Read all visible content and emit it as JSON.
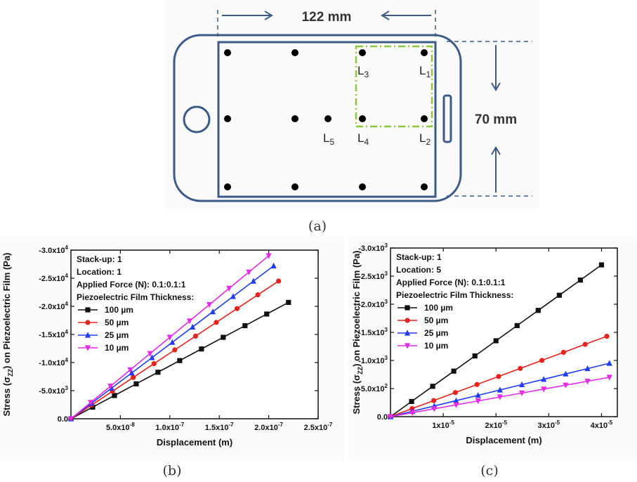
{
  "figure": {
    "captions": [
      "(a)",
      "(b)",
      "(c)"
    ]
  },
  "diagram": {
    "width_label": "122 mm",
    "height_label": "70 mm",
    "points": [
      {
        "main": "L",
        "sub": "3"
      },
      {
        "main": "L",
        "sub": "1"
      },
      {
        "main": "L",
        "sub": "5"
      },
      {
        "main": "L",
        "sub": "4"
      },
      {
        "main": "L",
        "sub": "2"
      }
    ],
    "colors": {
      "outline": "#3b5a86",
      "dashed_box": "#8dc63f",
      "dot": "#000000"
    }
  },
  "chart_data": [
    {
      "type": "line",
      "panel": "(b)",
      "xlabel": "Displacement (m)",
      "ylabel": "Stress (σZZ) on Piezoelectric Film (Pa)",
      "xlim": [
        0,
        2.5e-07
      ],
      "ylim": [
        0,
        -30000
      ],
      "x_ticks": [
        "5.0x10-8",
        "1.0x10-7",
        "1.5x10-7",
        "2.0x10-7",
        "2.5x10-7"
      ],
      "y_ticks": [
        "0.0",
        "-5.0x103",
        "-1.0x104",
        "-1.5x104",
        "-2.0x104",
        "-2.5x104",
        "-3.0x104"
      ],
      "annotations": [
        "Stack-up: 1",
        "Location: 1",
        "Applied Force (N): 0.1:0.1:1",
        "Piezoelectric Film Thickness:"
      ],
      "series": [
        {
          "name": "100 µm",
          "color": "#111111",
          "marker": "square",
          "x": [
            0,
            2.2e-08,
            4.4e-08,
            6.6e-08,
            8.8e-08,
            1.1e-07,
            1.32e-07,
            1.54e-07,
            1.76e-07,
            1.98e-07,
            2.2e-07
          ],
          "y": [
            0,
            -2070,
            -4140,
            -6210,
            -8280,
            -10350,
            -12420,
            -14490,
            -16560,
            -18630,
            -20700
          ]
        },
        {
          "name": "50 µm",
          "color": "#e8221c",
          "marker": "circle",
          "x": [
            0,
            2.1e-08,
            4.2e-08,
            6.3e-08,
            8.4e-08,
            1.05e-07,
            1.26e-07,
            1.47e-07,
            1.68e-07,
            1.89e-07,
            2.1e-07
          ],
          "y": [
            0,
            -2450,
            -4900,
            -7350,
            -9800,
            -12250,
            -14700,
            -17150,
            -19600,
            -22050,
            -24500
          ]
        },
        {
          "name": "25 µm",
          "color": "#1f3cf0",
          "marker": "triangle-up",
          "x": [
            0,
            2.05e-08,
            4.1e-08,
            6.15e-08,
            8.2e-08,
            1.025e-07,
            1.23e-07,
            1.435e-07,
            1.64e-07,
            1.845e-07,
            2.05e-07
          ],
          "y": [
            0,
            -2720,
            -5440,
            -8160,
            -10880,
            -13600,
            -16320,
            -19040,
            -21760,
            -24480,
            -27200
          ]
        },
        {
          "name": "10 µm",
          "color": "#e62ae6",
          "marker": "triangle-down",
          "x": [
            0,
            2e-08,
            4e-08,
            6e-08,
            8e-08,
            1e-07,
            1.2e-07,
            1.4e-07,
            1.6e-07,
            1.8e-07,
            2e-07
          ],
          "y": [
            0,
            -2900,
            -5800,
            -8700,
            -11600,
            -14500,
            -17400,
            -20300,
            -23200,
            -26100,
            -29000
          ]
        }
      ]
    },
    {
      "type": "line",
      "panel": "(c)",
      "xlabel": "Displacement (m)",
      "ylabel": "Stress (σZZ) on Piezoelectric Film (Pa)",
      "xlim": [
        0,
        4.3e-05
      ],
      "ylim": [
        0,
        -3000
      ],
      "x_ticks": [
        "1x10-5",
        "2x10-5",
        "3x10-5",
        "4x10-5"
      ],
      "y_ticks": [
        "0.0",
        "-5.0x102",
        "-1.0x103",
        "-1.5x103",
        "-2.0x103",
        "-2.5x103",
        "-3.0x103"
      ],
      "annotations": [
        "Stack-up: 1",
        "Location: 5",
        "Applied Force (N): 0.1:0.1:1",
        "Piezoelectric Film Thickness:"
      ],
      "series": [
        {
          "name": "100 µm",
          "color": "#111111",
          "marker": "square",
          "x": [
            0,
            4e-06,
            8e-06,
            1.2e-05,
            1.6e-05,
            2e-05,
            2.4e-05,
            2.8e-05,
            3.2e-05,
            3.6e-05,
            4e-05
          ],
          "y": [
            0,
            -270,
            -540,
            -810,
            -1080,
            -1350,
            -1620,
            -1890,
            -2160,
            -2430,
            -2700
          ]
        },
        {
          "name": "50 µm",
          "color": "#e8221c",
          "marker": "circle",
          "x": [
            0,
            4.1e-06,
            8.2e-06,
            1.23e-05,
            1.64e-05,
            2.05e-05,
            2.46e-05,
            2.87e-05,
            3.28e-05,
            3.69e-05,
            4.1e-05
          ],
          "y": [
            0,
            -143,
            -286,
            -429,
            -572,
            -715,
            -858,
            -1001,
            -1144,
            -1287,
            -1430
          ]
        },
        {
          "name": "25 µm",
          "color": "#1f3cf0",
          "marker": "triangle-up",
          "x": [
            0,
            4.15e-06,
            8.3e-06,
            1.245e-05,
            1.66e-05,
            2.075e-05,
            2.49e-05,
            2.905e-05,
            3.32e-05,
            3.735e-05,
            4.15e-05
          ],
          "y": [
            0,
            -95,
            -190,
            -285,
            -380,
            -475,
            -570,
            -665,
            -760,
            -855,
            -950
          ]
        },
        {
          "name": "10 µm",
          "color": "#e62ae6",
          "marker": "triangle-down",
          "x": [
            0,
            4.15e-06,
            8.3e-06,
            1.245e-05,
            1.66e-05,
            2.075e-05,
            2.49e-05,
            2.905e-05,
            3.32e-05,
            3.735e-05,
            4.15e-05
          ],
          "y": [
            0,
            -70,
            -140,
            -210,
            -280,
            -350,
            -420,
            -490,
            -560,
            -630,
            -700
          ]
        }
      ]
    }
  ]
}
